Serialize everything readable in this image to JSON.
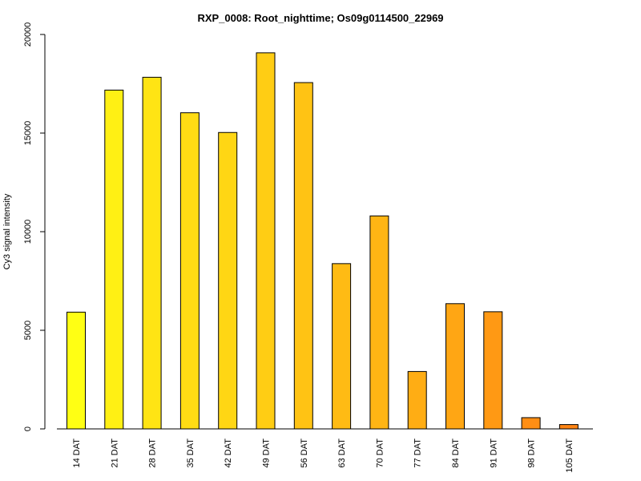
{
  "chart_data": {
    "type": "bar",
    "title": "RXP_0008: Root_nighttime; Os09g0114500_22969",
    "xlabel": "",
    "ylabel": "Cy3 signal intensity",
    "ylim": [
      0,
      20000
    ],
    "yticks": [
      0,
      5000,
      10000,
      15000,
      20000
    ],
    "grid": false,
    "categories": [
      "14 DAT",
      "21 DAT",
      "28 DAT",
      "35 DAT",
      "42 DAT",
      "49 DAT",
      "56 DAT",
      "63 DAT",
      "70 DAT",
      "77 DAT",
      "84 DAT",
      "91 DAT",
      "98 DAT",
      "105 DAT"
    ],
    "values": [
      5920,
      17180,
      17830,
      16030,
      15030,
      19070,
      17560,
      8380,
      10800,
      2910,
      6350,
      5940,
      570,
      220
    ],
    "colors": [
      "#FFFF14",
      "#FFF014",
      "#FFE414",
      "#FFDC14",
      "#FFD614",
      "#FFCD14",
      "#FFC314",
      "#FFBB14",
      "#FFB514",
      "#FFAD14",
      "#FFA614",
      "#FF9914",
      "#FF8E14",
      "#FF8414"
    ],
    "bar_border_color": "#000000"
  }
}
